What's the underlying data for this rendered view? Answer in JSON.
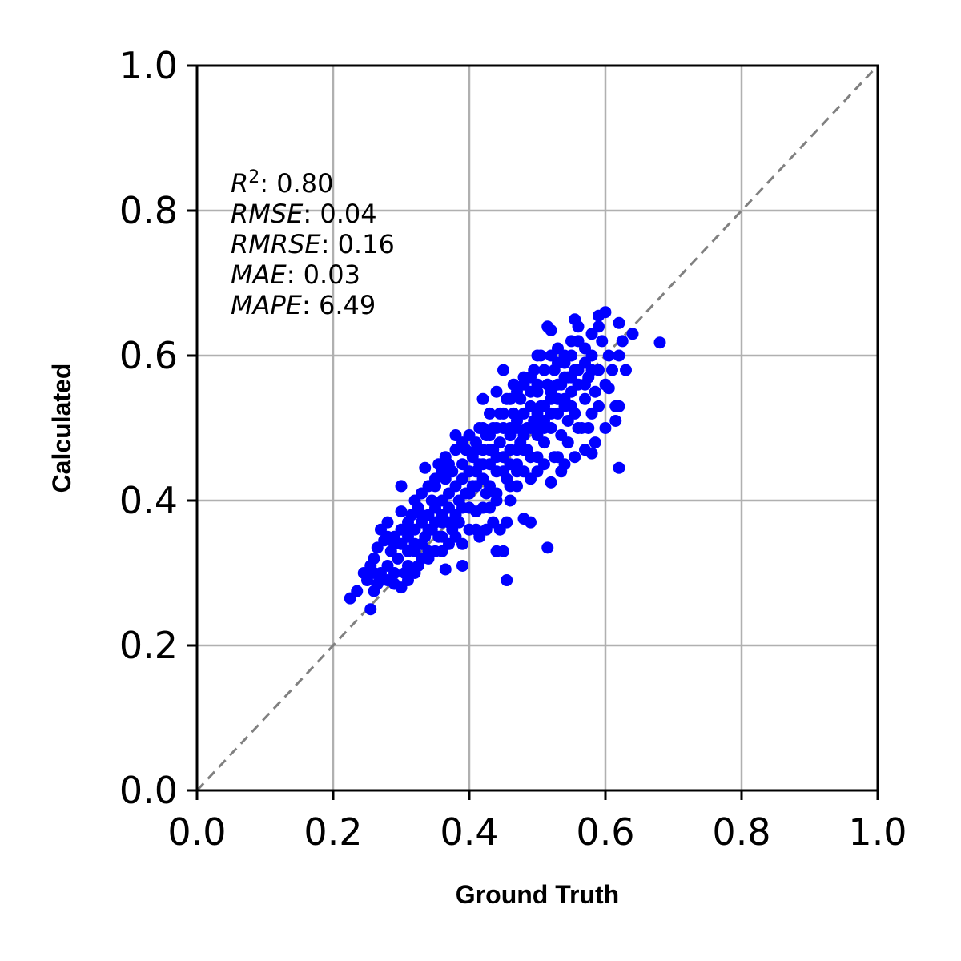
{
  "chart_data": {
    "type": "scatter",
    "xlabel": "Ground Truth",
    "ylabel": "Calculated",
    "xlim": [
      0.0,
      1.0
    ],
    "ylim": [
      0.0,
      1.0
    ],
    "x_ticks": [
      "0.0",
      "0.2",
      "0.4",
      "0.6",
      "0.8",
      "1.0"
    ],
    "y_ticks": [
      "0.0",
      "0.2",
      "0.4",
      "0.6",
      "0.8",
      "1.0"
    ],
    "grid": true,
    "point_color": "#0000ff",
    "reference_line": {
      "from": [
        0.0,
        0.0
      ],
      "to": [
        1.0,
        1.0
      ],
      "style": "dashed",
      "color": "#808080"
    },
    "stats": [
      {
        "name": "R",
        "sup": "2",
        "value": ": 0.80"
      },
      {
        "name": "RMSE",
        "sup": "",
        "value": ": 0.04"
      },
      {
        "name": "RMRSE",
        "sup": "",
        "value": ": 0.16"
      },
      {
        "name": "MAE",
        "sup": "",
        "value": ": 0.03"
      },
      {
        "name": "MAPE",
        "sup": "",
        "value": ": 6.49"
      }
    ],
    "points": [
      [
        0.225,
        0.265
      ],
      [
        0.235,
        0.275
      ],
      [
        0.255,
        0.25
      ],
      [
        0.26,
        0.275
      ],
      [
        0.245,
        0.3
      ],
      [
        0.25,
        0.29
      ],
      [
        0.265,
        0.285
      ],
      [
        0.27,
        0.3
      ],
      [
        0.26,
        0.32
      ],
      [
        0.265,
        0.335
      ],
      [
        0.27,
        0.36
      ],
      [
        0.275,
        0.345
      ],
      [
        0.28,
        0.31
      ],
      [
        0.285,
        0.33
      ],
      [
        0.28,
        0.37
      ],
      [
        0.29,
        0.35
      ],
      [
        0.29,
        0.3
      ],
      [
        0.295,
        0.32
      ],
      [
        0.3,
        0.34
      ],
      [
        0.3,
        0.385
      ],
      [
        0.305,
        0.36
      ],
      [
        0.305,
        0.3
      ],
      [
        0.31,
        0.33
      ],
      [
        0.31,
        0.35
      ],
      [
        0.3,
        0.42
      ],
      [
        0.315,
        0.38
      ],
      [
        0.32,
        0.34
      ],
      [
        0.32,
        0.36
      ],
      [
        0.325,
        0.31
      ],
      [
        0.325,
        0.39
      ],
      [
        0.33,
        0.37
      ],
      [
        0.33,
        0.41
      ],
      [
        0.335,
        0.35
      ],
      [
        0.335,
        0.445
      ],
      [
        0.34,
        0.38
      ],
      [
        0.34,
        0.33
      ],
      [
        0.345,
        0.4
      ],
      [
        0.345,
        0.36
      ],
      [
        0.35,
        0.42
      ],
      [
        0.35,
        0.39
      ],
      [
        0.355,
        0.35
      ],
      [
        0.355,
        0.45
      ],
      [
        0.36,
        0.4
      ],
      [
        0.36,
        0.37
      ],
      [
        0.36,
        0.33
      ],
      [
        0.365,
        0.43
      ],
      [
        0.365,
        0.46
      ],
      [
        0.37,
        0.39
      ],
      [
        0.37,
        0.41
      ],
      [
        0.375,
        0.36
      ],
      [
        0.375,
        0.44
      ],
      [
        0.38,
        0.42
      ],
      [
        0.38,
        0.49
      ],
      [
        0.385,
        0.4
      ],
      [
        0.385,
        0.37
      ],
      [
        0.39,
        0.45
      ],
      [
        0.39,
        0.43
      ],
      [
        0.395,
        0.41
      ],
      [
        0.395,
        0.47
      ],
      [
        0.4,
        0.44
      ],
      [
        0.4,
        0.39
      ],
      [
        0.405,
        0.46
      ],
      [
        0.405,
        0.42
      ],
      [
        0.41,
        0.48
      ],
      [
        0.41,
        0.44
      ],
      [
        0.41,
        0.385
      ],
      [
        0.415,
        0.5
      ],
      [
        0.415,
        0.45
      ],
      [
        0.42,
        0.43
      ],
      [
        0.42,
        0.47
      ],
      [
        0.42,
        0.54
      ],
      [
        0.425,
        0.41
      ],
      [
        0.425,
        0.49
      ],
      [
        0.43,
        0.45
      ],
      [
        0.43,
        0.52
      ],
      [
        0.43,
        0.39
      ],
      [
        0.435,
        0.47
      ],
      [
        0.435,
        0.5
      ],
      [
        0.44,
        0.44
      ],
      [
        0.44,
        0.55
      ],
      [
        0.44,
        0.41
      ],
      [
        0.445,
        0.48
      ],
      [
        0.445,
        0.52
      ],
      [
        0.45,
        0.46
      ],
      [
        0.45,
        0.5
      ],
      [
        0.45,
        0.58
      ],
      [
        0.455,
        0.43
      ],
      [
        0.455,
        0.54
      ],
      [
        0.46,
        0.49
      ],
      [
        0.46,
        0.47
      ],
      [
        0.46,
        0.4
      ],
      [
        0.465,
        0.52
      ],
      [
        0.465,
        0.56
      ],
      [
        0.47,
        0.5
      ],
      [
        0.47,
        0.45
      ],
      [
        0.47,
        0.42
      ],
      [
        0.475,
        0.54
      ],
      [
        0.475,
        0.48
      ],
      [
        0.48,
        0.52
      ],
      [
        0.48,
        0.57
      ],
      [
        0.48,
        0.44
      ],
      [
        0.485,
        0.5
      ],
      [
        0.485,
        0.47
      ],
      [
        0.49,
        0.55
      ],
      [
        0.49,
        0.53
      ],
      [
        0.49,
        0.43
      ],
      [
        0.495,
        0.51
      ],
      [
        0.495,
        0.58
      ],
      [
        0.5,
        0.49
      ],
      [
        0.5,
        0.55
      ],
      [
        0.5,
        0.46
      ],
      [
        0.505,
        0.53
      ],
      [
        0.505,
        0.6
      ],
      [
        0.51,
        0.51
      ],
      [
        0.51,
        0.48
      ],
      [
        0.515,
        0.56
      ],
      [
        0.515,
        0.64
      ],
      [
        0.52,
        0.54
      ],
      [
        0.52,
        0.5
      ],
      [
        0.525,
        0.58
      ],
      [
        0.525,
        0.46
      ],
      [
        0.53,
        0.52
      ],
      [
        0.53,
        0.61
      ],
      [
        0.535,
        0.56
      ],
      [
        0.535,
        0.49
      ],
      [
        0.54,
        0.54
      ],
      [
        0.54,
        0.59
      ],
      [
        0.545,
        0.51
      ],
      [
        0.545,
        0.57
      ],
      [
        0.55,
        0.55
      ],
      [
        0.55,
        0.6
      ],
      [
        0.555,
        0.52
      ],
      [
        0.555,
        0.58
      ],
      [
        0.56,
        0.56
      ],
      [
        0.56,
        0.62
      ],
      [
        0.565,
        0.5
      ],
      [
        0.57,
        0.54
      ],
      [
        0.57,
        0.59
      ],
      [
        0.575,
        0.57
      ],
      [
        0.58,
        0.52
      ],
      [
        0.58,
        0.6
      ],
      [
        0.585,
        0.55
      ],
      [
        0.59,
        0.58
      ],
      [
        0.595,
        0.62
      ],
      [
        0.6,
        0.56
      ],
      [
        0.605,
        0.6
      ],
      [
        0.61,
        0.58
      ],
      [
        0.615,
        0.53
      ],
      [
        0.62,
        0.6
      ],
      [
        0.625,
        0.62
      ],
      [
        0.62,
        0.645
      ],
      [
        0.605,
        0.555
      ],
      [
        0.63,
        0.58
      ],
      [
        0.64,
        0.63
      ],
      [
        0.68,
        0.618
      ],
      [
        0.62,
        0.445
      ],
      [
        0.6,
        0.66
      ],
      [
        0.59,
        0.655
      ],
      [
        0.555,
        0.65
      ],
      [
        0.52,
        0.635
      ],
      [
        0.5,
        0.6
      ],
      [
        0.62,
        0.53
      ],
      [
        0.615,
        0.51
      ],
      [
        0.58,
        0.465
      ],
      [
        0.555,
        0.46
      ],
      [
        0.535,
        0.44
      ],
      [
        0.52,
        0.425
      ],
      [
        0.5,
        0.44
      ],
      [
        0.49,
        0.37
      ],
      [
        0.48,
        0.375
      ],
      [
        0.455,
        0.37
      ],
      [
        0.455,
        0.29
      ],
      [
        0.45,
        0.33
      ],
      [
        0.44,
        0.33
      ],
      [
        0.445,
        0.36
      ],
      [
        0.435,
        0.37
      ],
      [
        0.425,
        0.36
      ],
      [
        0.415,
        0.35
      ],
      [
        0.39,
        0.31
      ],
      [
        0.365,
        0.305
      ],
      [
        0.515,
        0.335
      ],
      [
        0.54,
        0.45
      ],
      [
        0.56,
        0.5
      ],
      [
        0.575,
        0.5
      ],
      [
        0.59,
        0.53
      ],
      [
        0.6,
        0.5
      ],
      [
        0.585,
        0.48
      ],
      [
        0.57,
        0.47
      ],
      [
        0.545,
        0.48
      ],
      [
        0.53,
        0.46
      ],
      [
        0.51,
        0.45
      ],
      [
        0.49,
        0.46
      ],
      [
        0.47,
        0.44
      ],
      [
        0.46,
        0.42
      ],
      [
        0.44,
        0.4
      ],
      [
        0.43,
        0.42
      ],
      [
        0.42,
        0.39
      ],
      [
        0.41,
        0.36
      ],
      [
        0.4,
        0.36
      ],
      [
        0.39,
        0.34
      ],
      [
        0.38,
        0.35
      ],
      [
        0.37,
        0.34
      ],
      [
        0.36,
        0.35
      ],
      [
        0.35,
        0.33
      ],
      [
        0.34,
        0.32
      ],
      [
        0.33,
        0.32
      ],
      [
        0.32,
        0.3
      ],
      [
        0.31,
        0.29
      ],
      [
        0.3,
        0.28
      ],
      [
        0.29,
        0.285
      ],
      [
        0.28,
        0.29
      ],
      [
        0.27,
        0.29
      ],
      [
        0.255,
        0.31
      ],
      [
        0.26,
        0.3
      ],
      [
        0.28,
        0.35
      ],
      [
        0.29,
        0.34
      ],
      [
        0.3,
        0.36
      ],
      [
        0.31,
        0.37
      ],
      [
        0.32,
        0.4
      ],
      [
        0.33,
        0.38
      ],
      [
        0.34,
        0.42
      ],
      [
        0.35,
        0.43
      ],
      [
        0.36,
        0.44
      ],
      [
        0.37,
        0.45
      ],
      [
        0.38,
        0.47
      ],
      [
        0.39,
        0.48
      ],
      [
        0.4,
        0.49
      ],
      [
        0.41,
        0.47
      ],
      [
        0.42,
        0.5
      ],
      [
        0.43,
        0.49
      ],
      [
        0.44,
        0.5
      ],
      [
        0.45,
        0.52
      ],
      [
        0.46,
        0.54
      ],
      [
        0.47,
        0.55
      ],
      [
        0.48,
        0.56
      ],
      [
        0.49,
        0.57
      ],
      [
        0.5,
        0.56
      ],
      [
        0.51,
        0.58
      ],
      [
        0.52,
        0.6
      ],
      [
        0.53,
        0.59
      ],
      [
        0.54,
        0.6
      ],
      [
        0.55,
        0.62
      ],
      [
        0.56,
        0.64
      ],
      [
        0.57,
        0.61
      ],
      [
        0.58,
        0.63
      ],
      [
        0.59,
        0.64
      ],
      [
        0.46,
        0.5
      ],
      [
        0.47,
        0.51
      ],
      [
        0.48,
        0.49
      ],
      [
        0.49,
        0.5
      ],
      [
        0.5,
        0.52
      ],
      [
        0.51,
        0.53
      ],
      [
        0.52,
        0.52
      ],
      [
        0.53,
        0.54
      ],
      [
        0.54,
        0.53
      ],
      [
        0.55,
        0.53
      ],
      [
        0.44,
        0.46
      ],
      [
        0.45,
        0.44
      ],
      [
        0.43,
        0.47
      ],
      [
        0.42,
        0.45
      ],
      [
        0.41,
        0.42
      ],
      [
        0.4,
        0.41
      ],
      [
        0.39,
        0.39
      ],
      [
        0.38,
        0.38
      ],
      [
        0.37,
        0.37
      ],
      [
        0.36,
        0.38
      ],
      [
        0.35,
        0.37
      ],
      [
        0.34,
        0.36
      ],
      [
        0.33,
        0.34
      ],
      [
        0.32,
        0.33
      ],
      [
        0.31,
        0.31
      ],
      [
        0.46,
        0.45
      ],
      [
        0.47,
        0.47
      ],
      [
        0.48,
        0.47
      ],
      [
        0.5,
        0.5
      ],
      [
        0.51,
        0.5
      ],
      [
        0.52,
        0.55
      ],
      [
        0.53,
        0.56
      ],
      [
        0.54,
        0.57
      ],
      [
        0.55,
        0.57
      ],
      [
        0.56,
        0.58
      ],
      [
        0.57,
        0.56
      ],
      [
        0.58,
        0.58
      ]
    ]
  }
}
